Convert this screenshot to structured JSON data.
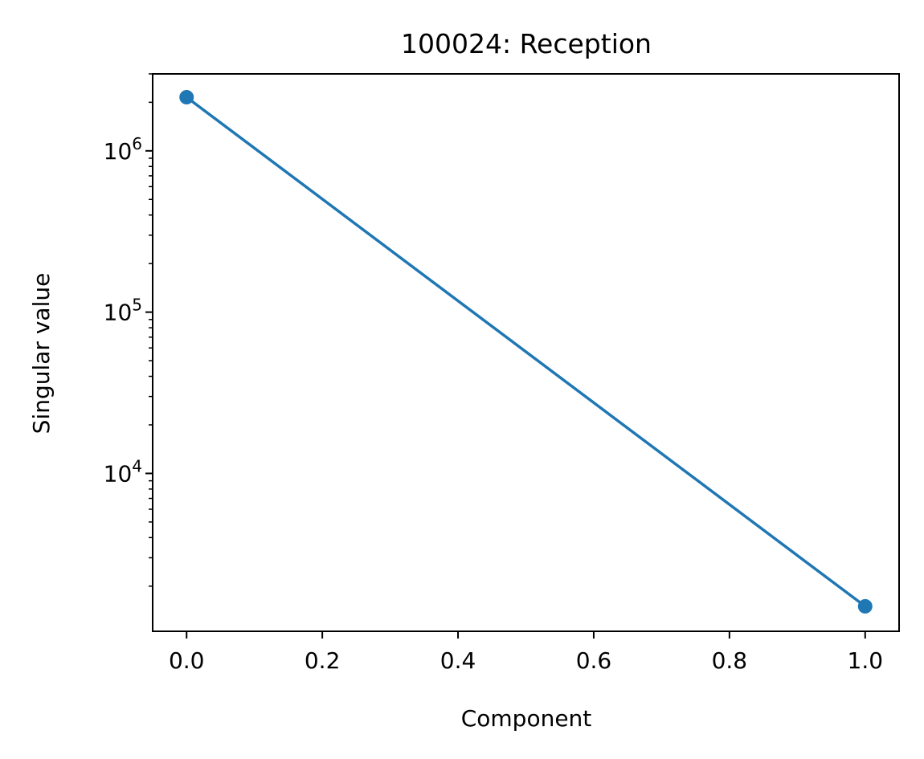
{
  "chart_data": {
    "type": "line",
    "title": "100024: Reception",
    "xlabel": "Component",
    "ylabel": "Singular value",
    "x": [
      0.0,
      1.0
    ],
    "series": [
      {
        "values": [
          2150000,
          1500
        ],
        "color": "#1f77b4"
      }
    ],
    "xlim": [
      -0.05,
      1.05
    ],
    "xticks": [
      0.0,
      0.2,
      0.4,
      0.6,
      0.8,
      1.0
    ],
    "xtick_labels": [
      "0.0",
      "0.2",
      "0.4",
      "0.6",
      "0.8",
      "1.0"
    ],
    "yscale": "log",
    "ylim": [
      1050,
      3000000
    ],
    "yticks": [
      {
        "value": 10000,
        "base": "10",
        "exp": "4"
      },
      {
        "value": 100000,
        "base": "10",
        "exp": "5"
      },
      {
        "value": 1000000,
        "base": "10",
        "exp": "6"
      }
    ],
    "grid": false,
    "legend": "none"
  }
}
